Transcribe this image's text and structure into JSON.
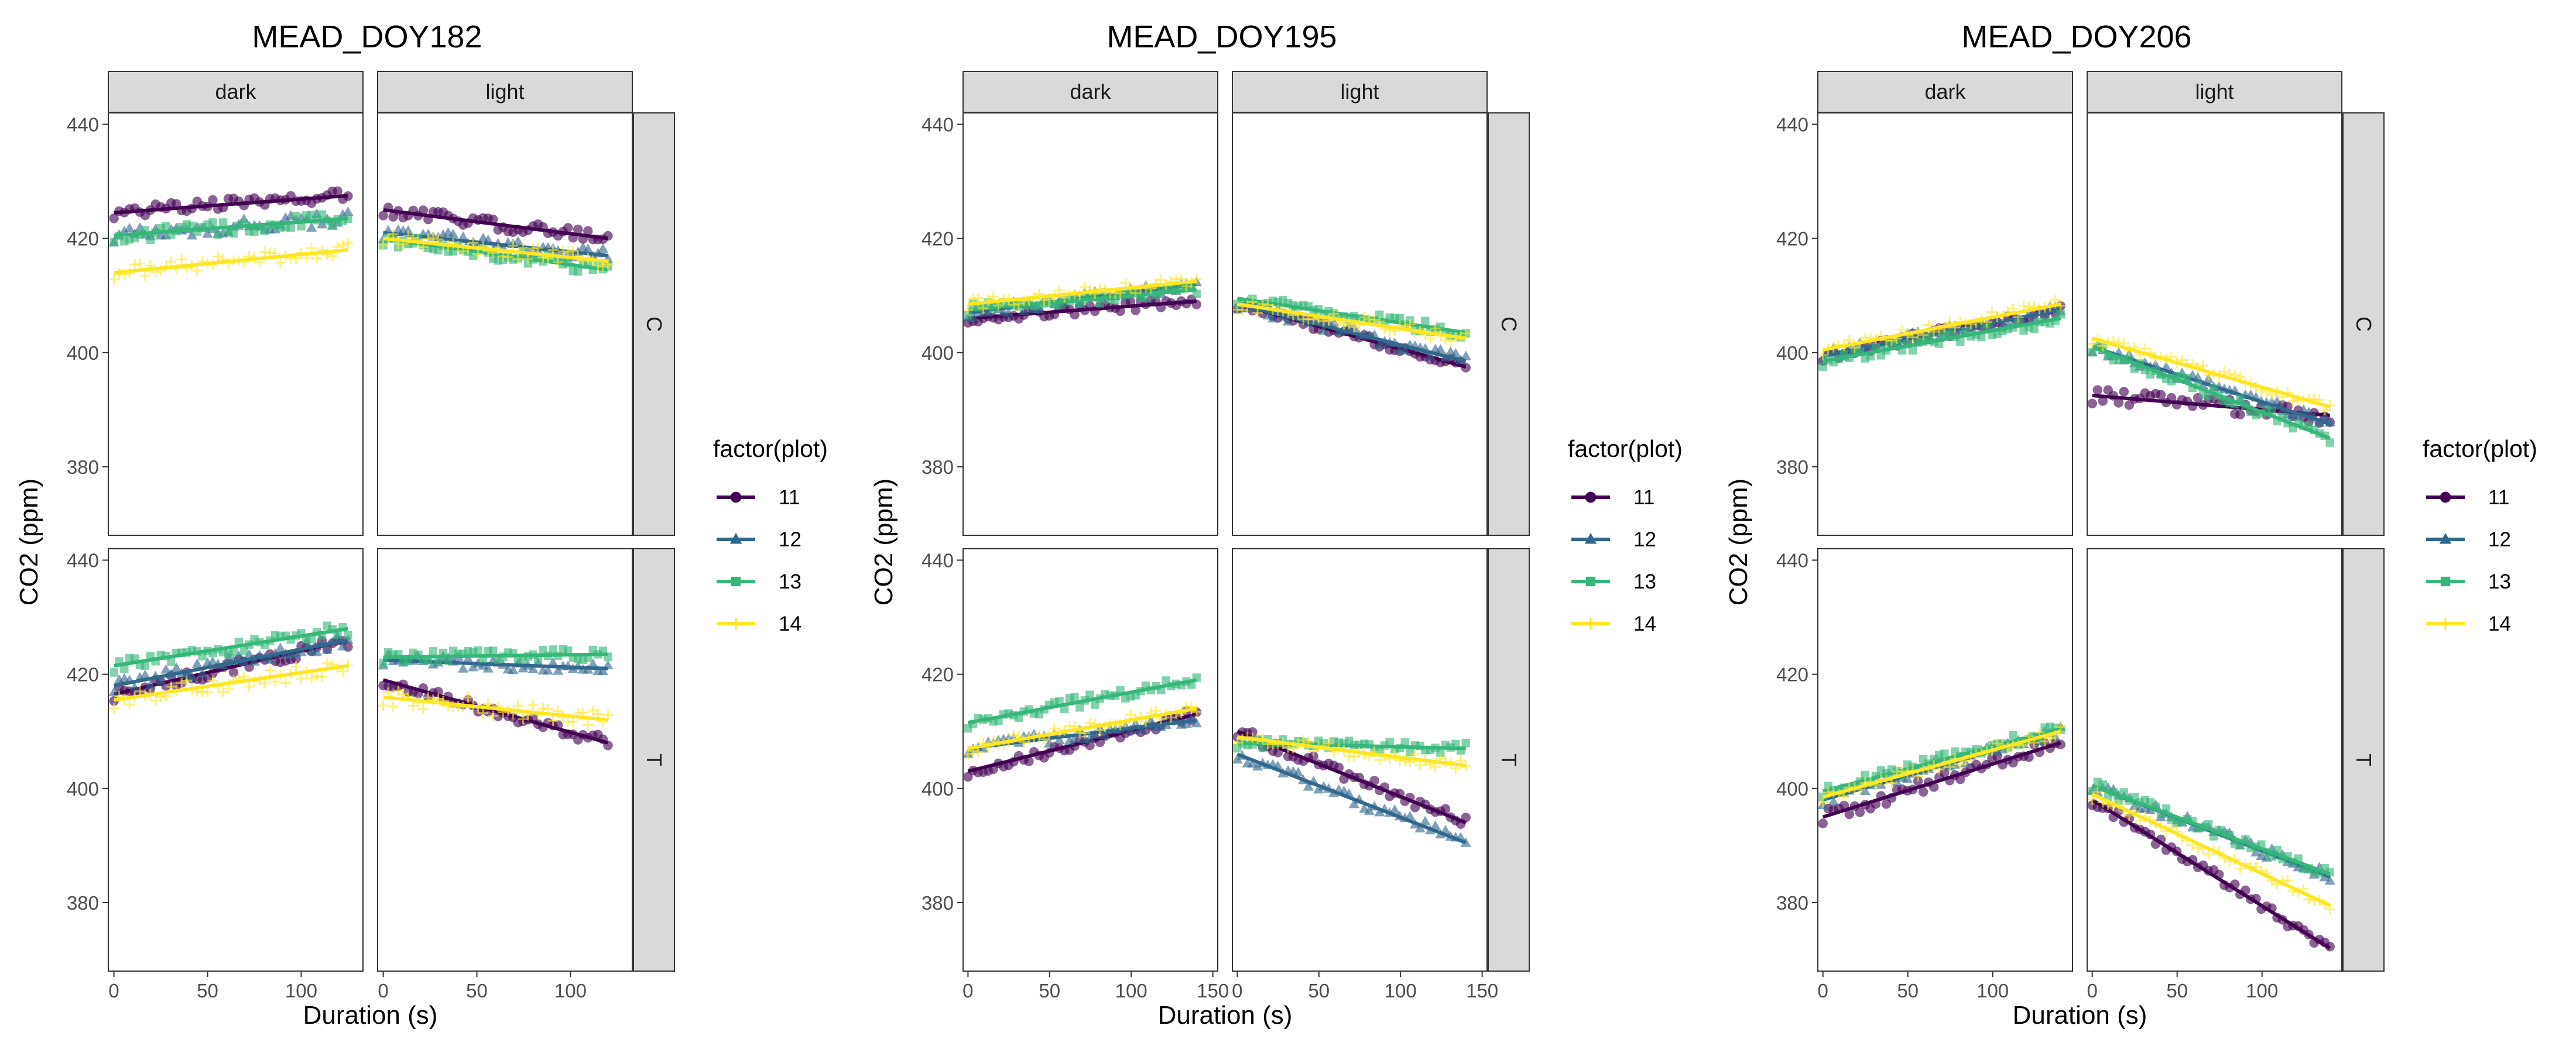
{
  "chart_data": [
    {
      "type": "scatter",
      "title": "MEAD_DOY182",
      "xlabel": "Duration (s)",
      "ylabel": "CO2 (ppm)",
      "xlim": [
        -3,
        133
      ],
      "ylim": [
        368,
        442
      ],
      "x_ticks": [
        0,
        50,
        100
      ],
      "y_ticks": [
        380,
        400,
        420,
        440
      ],
      "columns": [
        "dark",
        "light"
      ],
      "rows": [
        "C",
        "T"
      ],
      "legend": {
        "title": "factor(plot)",
        "placement": "right",
        "items": [
          "11",
          "12",
          "13",
          "14"
        ]
      },
      "grid": false,
      "colors": {
        "11": "#440154",
        "12": "#31688E",
        "13": "#35B779",
        "14": "#FDE725"
      },
      "panels": [
        {
          "column": "dark",
          "row": "C",
          "series": [
            {
              "name": "11",
              "x": [
                0,
                125
              ],
              "y": [
                424.5,
                427.5
              ],
              "spread": 1.0
            },
            {
              "name": "12",
              "x": [
                0,
                125
              ],
              "y": [
                420.5,
                423.5
              ],
              "spread": 1.2
            },
            {
              "name": "13",
              "x": [
                0,
                125
              ],
              "y": [
                420.5,
                423.5
              ],
              "spread": 1.2
            },
            {
              "name": "14",
              "x": [
                0,
                125
              ],
              "y": [
                414.0,
                418.0
              ],
              "spread": 1.2
            }
          ]
        },
        {
          "column": "light",
          "row": "C",
          "series": [
            {
              "name": "11",
              "x": [
                0,
                120
              ],
              "y": [
                425.0,
                420.0
              ],
              "spread": 1.0
            },
            {
              "name": "12",
              "x": [
                0,
                120
              ],
              "y": [
                421.0,
                417.0
              ],
              "spread": 1.2
            },
            {
              "name": "13",
              "x": [
                0,
                120
              ],
              "y": [
                420.0,
                414.5
              ],
              "spread": 1.2
            },
            {
              "name": "14",
              "x": [
                0,
                120
              ],
              "y": [
                420.0,
                416.0
              ],
              "spread": 1.2
            }
          ]
        },
        {
          "column": "dark",
          "row": "T",
          "series": [
            {
              "name": "11",
              "x": [
                0,
                125
              ],
              "y": [
                416.5,
                426.0
              ],
              "spread": 1.2
            },
            {
              "name": "12",
              "x": [
                0,
                125
              ],
              "y": [
                418.0,
                426.0
              ],
              "spread": 1.2
            },
            {
              "name": "13",
              "x": [
                0,
                125
              ],
              "y": [
                421.5,
                428.0
              ],
              "spread": 1.2
            },
            {
              "name": "14",
              "x": [
                0,
                125
              ],
              "y": [
                415.5,
                421.5
              ],
              "spread": 1.5
            }
          ]
        },
        {
          "column": "light",
          "row": "T",
          "series": [
            {
              "name": "11",
              "x": [
                0,
                120
              ],
              "y": [
                419.0,
                408.0
              ],
              "spread": 1.0
            },
            {
              "name": "12",
              "x": [
                0,
                120
              ],
              "y": [
                422.5,
                421.0
              ],
              "spread": 1.0
            },
            {
              "name": "13",
              "x": [
                0,
                120
              ],
              "y": [
                423.0,
                423.5
              ],
              "spread": 1.0
            },
            {
              "name": "14",
              "x": [
                0,
                120
              ],
              "y": [
                416.0,
                412.0
              ],
              "spread": 1.5
            }
          ]
        }
      ]
    },
    {
      "type": "scatter",
      "title": "MEAD_DOY195",
      "xlabel": "Duration (s)",
      "ylabel": "CO2 (ppm)",
      "xlim": [
        -3,
        153
      ],
      "ylim": [
        368,
        442
      ],
      "x_ticks": [
        0,
        50,
        100,
        150
      ],
      "y_ticks": [
        380,
        400,
        420,
        440
      ],
      "columns": [
        "dark",
        "light"
      ],
      "rows": [
        "C",
        "T"
      ],
      "legend": {
        "title": "factor(plot)",
        "placement": "right",
        "items": [
          "11",
          "12",
          "13",
          "14"
        ]
      },
      "grid": false,
      "colors": {
        "11": "#440154",
        "12": "#31688E",
        "13": "#35B779",
        "14": "#FDE725"
      },
      "panels": [
        {
          "column": "dark",
          "row": "C",
          "series": [
            {
              "name": "11",
              "x": [
                0,
                140
              ],
              "y": [
                406.0,
                409.0
              ],
              "spread": 0.8
            },
            {
              "name": "12",
              "x": [
                0,
                140
              ],
              "y": [
                407.0,
                412.0
              ],
              "spread": 1.0
            },
            {
              "name": "13",
              "x": [
                0,
                140
              ],
              "y": [
                407.5,
                411.0
              ],
              "spread": 1.0
            },
            {
              "name": "14",
              "x": [
                0,
                140
              ],
              "y": [
                408.5,
                412.5
              ],
              "spread": 1.0
            }
          ]
        },
        {
          "column": "light",
          "row": "C",
          "series": [
            {
              "name": "11",
              "x": [
                0,
                140
              ],
              "y": [
                408.5,
                397.5
              ],
              "spread": 0.8
            },
            {
              "name": "12",
              "x": [
                0,
                140
              ],
              "y": [
                408.5,
                398.5
              ],
              "spread": 1.0
            },
            {
              "name": "13",
              "x": [
                0,
                140
              ],
              "y": [
                409.5,
                403.5
              ],
              "spread": 1.0
            },
            {
              "name": "14",
              "x": [
                0,
                140
              ],
              "y": [
                408.5,
                402.5
              ],
              "spread": 1.0
            }
          ]
        },
        {
          "column": "dark",
          "row": "T",
          "series": [
            {
              "name": "11",
              "x": [
                0,
                140
              ],
              "y": [
                403.0,
                413.0
              ],
              "spread": 1.0
            },
            {
              "name": "12",
              "x": [
                0,
                140
              ],
              "y": [
                407.0,
                412.0
              ],
              "spread": 1.0
            },
            {
              "name": "13",
              "x": [
                0,
                140
              ],
              "y": [
                411.5,
                419.0
              ],
              "spread": 1.0
            },
            {
              "name": "14",
              "x": [
                0,
                140
              ],
              "y": [
                407.0,
                414.0
              ],
              "spread": 1.0
            }
          ]
        },
        {
          "column": "light",
          "row": "T",
          "series": [
            {
              "name": "11",
              "x": [
                0,
                140
              ],
              "y": [
                410.0,
                394.0
              ],
              "spread": 1.0
            },
            {
              "name": "12",
              "x": [
                0,
                140
              ],
              "y": [
                406.0,
                390.5
              ],
              "spread": 1.0
            },
            {
              "name": "13",
              "x": [
                0,
                140
              ],
              "y": [
                408.0,
                407.0
              ],
              "spread": 1.0
            },
            {
              "name": "14",
              "x": [
                0,
                140
              ],
              "y": [
                409.0,
                404.0
              ],
              "spread": 1.0
            }
          ]
        }
      ]
    },
    {
      "type": "scatter",
      "title": "MEAD_DOY206",
      "xlabel": "Duration (s)",
      "ylabel": "CO2 (ppm)",
      "xlim": [
        -3,
        147
      ],
      "ylim": [
        368,
        442
      ],
      "x_ticks": [
        0,
        50,
        100
      ],
      "y_ticks": [
        380,
        400,
        420,
        440
      ],
      "columns": [
        "dark",
        "light"
      ],
      "rows": [
        "C",
        "T"
      ],
      "legend": {
        "title": "factor(plot)",
        "placement": "right",
        "items": [
          "11",
          "12",
          "13",
          "14"
        ]
      },
      "grid": false,
      "colors": {
        "11": "#440154",
        "12": "#31688E",
        "13": "#35B779",
        "14": "#FDE725"
      },
      "panels": [
        {
          "column": "dark",
          "row": "C",
          "series": [
            {
              "name": "11",
              "x": [
                0,
                140
              ],
              "y": [
                399.5,
                407.5
              ],
              "spread": 1.0
            },
            {
              "name": "12",
              "x": [
                0,
                140
              ],
              "y": [
                399.5,
                407.5
              ],
              "spread": 1.0
            },
            {
              "name": "13",
              "x": [
                0,
                140
              ],
              "y": [
                398.5,
                406.0
              ],
              "spread": 1.0
            },
            {
              "name": "14",
              "x": [
                0,
                140
              ],
              "y": [
                400.5,
                408.5
              ],
              "spread": 1.0
            }
          ]
        },
        {
          "column": "light",
          "row": "C",
          "series": [
            {
              "name": "11",
              "x": [
                0,
                140
              ],
              "y": [
                392.5,
                389.0
              ],
              "spread": 1.5
            },
            {
              "name": "12",
              "x": [
                0,
                140
              ],
              "y": [
                401.0,
                387.5
              ],
              "spread": 1.0
            },
            {
              "name": "13",
              "x": [
                0,
                140
              ],
              "y": [
                401.0,
                385.0
              ],
              "spread": 1.0
            },
            {
              "name": "14",
              "x": [
                0,
                140
              ],
              "y": [
                402.5,
                390.5
              ],
              "spread": 1.0
            }
          ]
        },
        {
          "column": "dark",
          "row": "T",
          "series": [
            {
              "name": "11",
              "x": [
                0,
                140
              ],
              "y": [
                395.0,
                408.0
              ],
              "spread": 1.2
            },
            {
              "name": "12",
              "x": [
                0,
                140
              ],
              "y": [
                398.0,
                410.0
              ],
              "spread": 1.0
            },
            {
              "name": "13",
              "x": [
                0,
                140
              ],
              "y": [
                399.5,
                410.5
              ],
              "spread": 1.0
            },
            {
              "name": "14",
              "x": [
                0,
                140
              ],
              "y": [
                398.5,
                410.0
              ],
              "spread": 1.0
            }
          ]
        },
        {
          "column": "light",
          "row": "T",
          "series": [
            {
              "name": "11",
              "x": [
                0,
                140
              ],
              "y": [
                398.0,
                372.0
              ],
              "spread": 1.0
            },
            {
              "name": "12",
              "x": [
                0,
                140
              ],
              "y": [
                400.5,
                384.5
              ],
              "spread": 1.0
            },
            {
              "name": "13",
              "x": [
                0,
                140
              ],
              "y": [
                400.5,
                385.0
              ],
              "spread": 1.0
            },
            {
              "name": "14",
              "x": [
                0,
                140
              ],
              "y": [
                399.0,
                379.5
              ],
              "spread": 1.0
            }
          ]
        }
      ]
    }
  ]
}
